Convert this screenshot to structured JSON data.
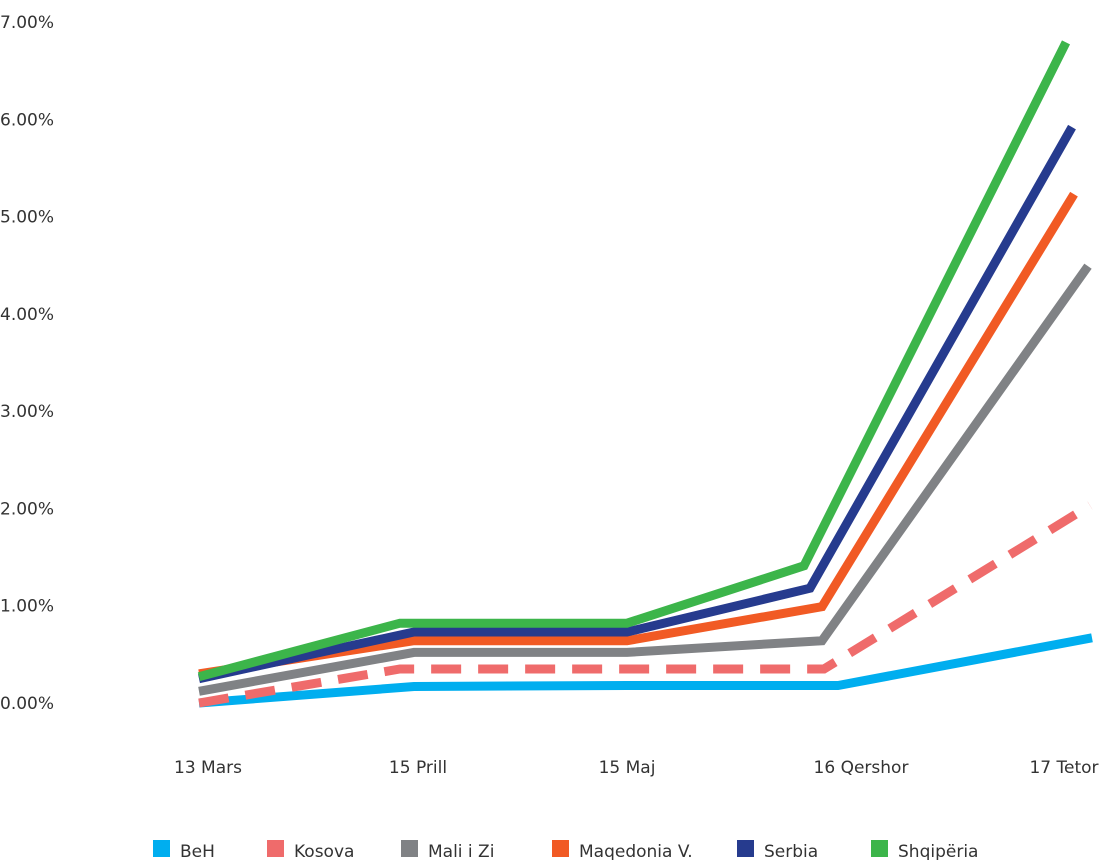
{
  "chart_data": {
    "type": "line",
    "title": "",
    "xlabel": "",
    "ylabel": "",
    "categories": [
      "13 Mars",
      "15 Prill",
      "15 Maj",
      "16 Qershor",
      "17 Tetor"
    ],
    "y_ticks": [
      "0.00%",
      "1.00%",
      "2.00%",
      "3.00%",
      "4.00%",
      "5.00%",
      "6.00%",
      "7.00%"
    ],
    "ylim": [
      0,
      7
    ],
    "y_unit": "%",
    "grid": false,
    "legend_position": "bottom",
    "series": [
      {
        "name": "BeH",
        "color": "#00AEEF",
        "dashed": false,
        "values": [
          0.0,
          0.17,
          0.18,
          0.18,
          0.67
        ]
      },
      {
        "name": "Kosova",
        "color": "#EF6B6B",
        "dashed": true,
        "values": [
          0.0,
          0.35,
          0.35,
          0.35,
          2.03
        ]
      },
      {
        "name": "Mali i Zi",
        "color": "#808285",
        "dashed": false,
        "values": [
          0.12,
          0.52,
          0.52,
          0.64,
          4.49
        ]
      },
      {
        "name": "Maqedonia V.",
        "color": "#F15A24",
        "dashed": false,
        "values": [
          0.3,
          0.64,
          0.64,
          0.99,
          5.23
        ]
      },
      {
        "name": "Serbia",
        "color": "#263B8E",
        "dashed": false,
        "values": [
          0.25,
          0.73,
          0.73,
          1.18,
          5.92
        ]
      },
      {
        "name": "Shqipëria",
        "color": "#3CB54A",
        "dashed": false,
        "values": [
          0.27,
          0.82,
          0.82,
          1.41,
          6.79
        ]
      }
    ]
  }
}
